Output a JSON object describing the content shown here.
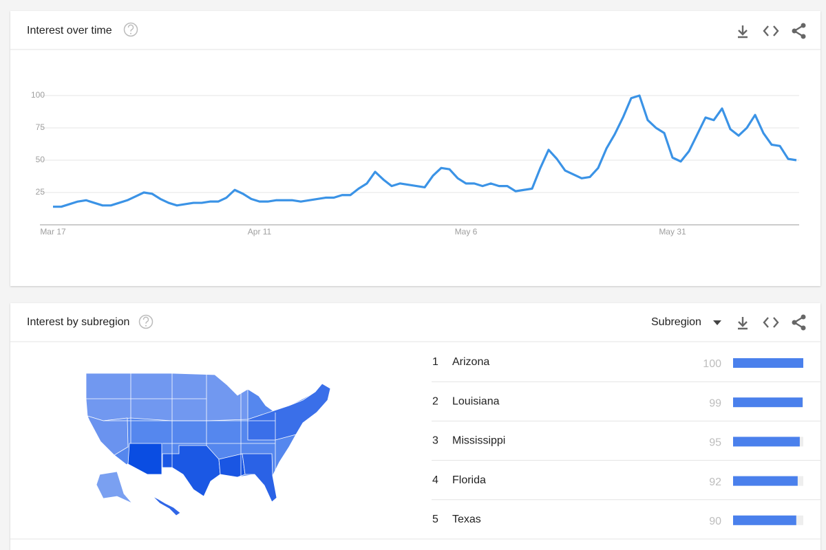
{
  "chart_data": {
    "type": "line",
    "title": "Interest over time",
    "categories": [
      "Mar 17",
      null,
      null,
      null,
      null,
      null,
      null,
      null,
      null,
      null,
      null,
      null,
      null,
      null,
      null,
      null,
      null,
      null,
      null,
      null,
      null,
      null,
      null,
      null,
      null,
      "Apr 11",
      null,
      null,
      null,
      null,
      null,
      null,
      null,
      null,
      null,
      null,
      null,
      null,
      null,
      null,
      null,
      null,
      null,
      null,
      null,
      null,
      null,
      null,
      null,
      null,
      "May 6",
      null,
      null,
      null,
      null,
      null,
      null,
      null,
      null,
      null,
      null,
      null,
      null,
      null,
      null,
      null,
      null,
      null,
      null,
      null,
      null,
      null,
      null,
      null,
      null,
      "May 31",
      null,
      null,
      null,
      null,
      null,
      null,
      null,
      null,
      null,
      null,
      null,
      null,
      null,
      null,
      null
    ],
    "values": [
      14,
      14,
      16,
      18,
      19,
      17,
      15,
      15,
      17,
      19,
      22,
      25,
      24,
      20,
      17,
      15,
      16,
      17,
      17,
      18,
      18,
      21,
      27,
      24,
      20,
      18,
      18,
      19,
      19,
      19,
      18,
      19,
      20,
      21,
      21,
      23,
      23,
      28,
      32,
      41,
      35,
      30,
      32,
      31,
      30,
      29,
      38,
      44,
      43,
      36,
      32,
      32,
      30,
      32,
      30,
      30,
      26,
      27,
      28,
      44,
      58,
      51,
      42,
      39,
      36,
      37,
      44,
      59,
      70,
      83,
      98,
      100,
      81,
      75,
      71,
      52,
      49,
      57,
      70,
      83,
      81,
      90,
      74,
      69,
      75,
      85,
      71,
      62,
      61,
      51,
      50
    ],
    "color": "#3b93e6",
    "ylim": [
      0,
      100
    ],
    "yticks": [
      25,
      50,
      75,
      100
    ],
    "grid": true
  },
  "subregion": {
    "title": "Interest by subregion",
    "dropdown": "Subregion",
    "bar_color": "#4a80ec",
    "rows": [
      {
        "rank": 1,
        "name": "Arizona",
        "value": 100
      },
      {
        "rank": 2,
        "name": "Louisiana",
        "value": 99
      },
      {
        "rank": 3,
        "name": "Mississippi",
        "value": 95
      },
      {
        "rank": 4,
        "name": "Florida",
        "value": 92
      },
      {
        "rank": 5,
        "name": "Texas",
        "value": 90
      }
    ]
  }
}
